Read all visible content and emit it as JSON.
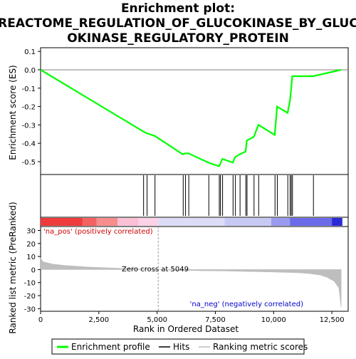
{
  "chart_data": {
    "type": "line",
    "title_line1": "Enrichment plot:",
    "title_line2": "REACTOME_REGULATION_OF_GLUCOKINASE_BY_GLUC",
    "title_line3": "OKINASE_REGULATORY_PROTEIN",
    "es_ylabel": "Enrichment score (ES)",
    "es_ylim": [
      -0.57,
      0.12
    ],
    "es_yticks": [
      0.1,
      0.0,
      -0.1,
      -0.2,
      -0.3,
      -0.4,
      -0.5
    ],
    "es_ytick_labels": [
      "0.1",
      "0.0",
      "-0.1",
      "-0.2",
      "-0.3",
      "-0.4",
      "-0.5"
    ],
    "metric_ylabel_line1": "Ranked list metric (PreRanked)",
    "metric_ylim": [
      -32,
      33
    ],
    "metric_yticks": [
      30,
      20,
      10,
      0,
      -10,
      -20,
      -30
    ],
    "metric_ytick_labels": [
      "30",
      "20",
      "10",
      "0",
      "-10",
      "-20",
      "-30"
    ],
    "xlabel": "Rank in Ordered Dataset",
    "xlim": [
      0,
      13200
    ],
    "xticks": [
      0,
      2500,
      5000,
      7500,
      10000,
      12500
    ],
    "xtick_labels": [
      "0",
      "2,500",
      "5,000",
      "7,500",
      "10,000",
      "12,500"
    ],
    "series": [
      {
        "name": "Enrichment profile",
        "color": "#00ff00",
        "x": [
          0,
          4400,
          4550,
          4900,
          6100,
          6200,
          6350,
          7200,
          7650,
          7700,
          7800,
          8250,
          8350,
          8550,
          8800,
          8850,
          9150,
          9350,
          10050,
          10150,
          10600,
          10700,
          10750,
          10800,
          11700,
          12900
        ],
        "y": [
          0.0,
          -0.335,
          -0.345,
          -0.36,
          -0.46,
          -0.455,
          -0.455,
          -0.505,
          -0.525,
          -0.515,
          -0.485,
          -0.505,
          -0.475,
          -0.46,
          -0.445,
          -0.385,
          -0.365,
          -0.3,
          -0.355,
          -0.2,
          -0.235,
          -0.17,
          -0.11,
          -0.035,
          -0.035,
          0.0
        ]
      },
      {
        "name": "Hits",
        "color": "#000000",
        "x": [
          4420,
          4570,
          4910,
          6120,
          6220,
          6360,
          7220,
          7670,
          7720,
          7810,
          8260,
          8360,
          8560,
          8810,
          8860,
          9160,
          9360,
          10060,
          10160,
          10610,
          10710,
          10760,
          10810,
          11710
        ]
      },
      {
        "name": "Ranking metric scores",
        "color": "#bebebe",
        "x": [
          0,
          100,
          500,
          1000,
          2000,
          3000,
          4000,
          5049,
          6000,
          7000,
          8000,
          9000,
          10000,
          11000,
          11500,
          12000,
          12300,
          12600,
          12800,
          12900
        ],
        "y": [
          9,
          6,
          4.2,
          3.2,
          2.0,
          1.2,
          0.5,
          0.0,
          -0.6,
          -0.9,
          -1.1,
          -1.5,
          -1.9,
          -2.4,
          -3.0,
          -4.2,
          -6.0,
          -9.0,
          -14.0,
          -29.0
        ]
      }
    ],
    "zero_cross_label": "Zero cross at 5049",
    "zero_cross_rank": 5049,
    "pos_label": "'na_pos' (positively correlated)",
    "neg_label": "'na_neg' (negatively correlated)",
    "legend": [
      "Enrichment profile",
      "Hits",
      "Ranking metric scores"
    ],
    "colorbar_segments": [
      {
        "end_rank": 1800,
        "color": "#ee3b3b"
      },
      {
        "end_rank": 2400,
        "color": "#f46262"
      },
      {
        "end_rank": 3300,
        "color": "#f78d8d"
      },
      {
        "end_rank": 4200,
        "color": "#fbc0d6"
      },
      {
        "end_rank": 5049,
        "color": "#fcd2e6"
      },
      {
        "end_rank": 7900,
        "color": "#dcdcf7"
      },
      {
        "end_rank": 9900,
        "color": "#c8c8f5"
      },
      {
        "end_rank": 10700,
        "color": "#9a9af0"
      },
      {
        "end_rank": 12500,
        "color": "#6b6bea"
      },
      {
        "end_rank": 12950,
        "color": "#2a2ad6"
      }
    ]
  }
}
